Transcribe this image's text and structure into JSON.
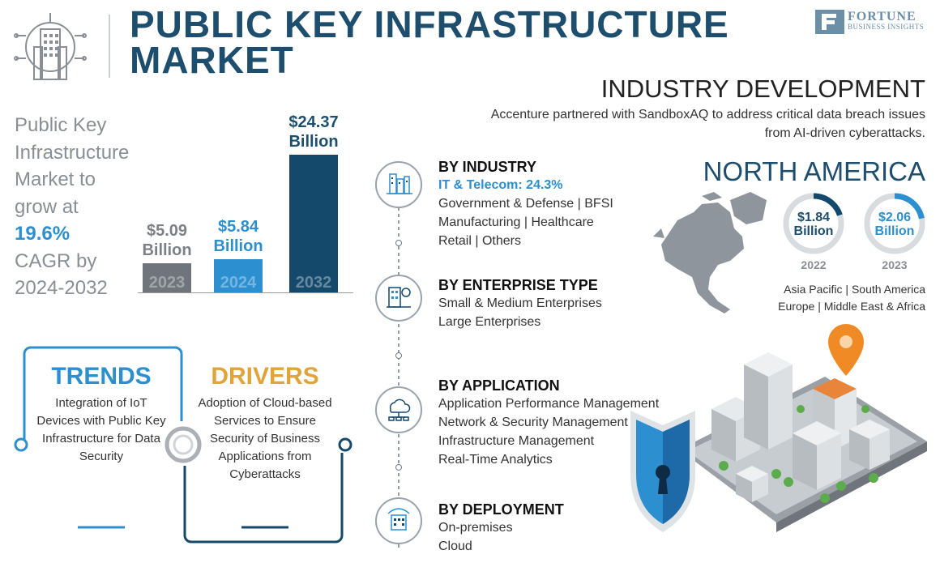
{
  "header": {
    "title_line1": "PUBLIC KEY INFRASTRUCTURE",
    "title_line2": "MARKET",
    "logo_line1": "FORTUNE",
    "logo_line2": "BUSINESS INSIGHTS"
  },
  "industry_development": {
    "heading": "INDUSTRY DEVELOPMENT",
    "text": "Accenture partnered with SandboxAQ to address critical data breach issues from AI-driven cyberattacks."
  },
  "growth": {
    "line1": "Public Key",
    "line2": "Infrastructure",
    "line3": "Market to",
    "line4": "grow at",
    "cagr": "19.6%",
    "line6": "CAGR by",
    "line7": "2024-2032"
  },
  "chart_data": {
    "type": "bar",
    "title": "",
    "categories": [
      "2023",
      "2024",
      "2032"
    ],
    "values": [
      5.09,
      5.84,
      24.37
    ],
    "value_labels": [
      {
        "amount": "$5.09",
        "unit": "Billion"
      },
      {
        "amount": "$5.84",
        "unit": "Billion"
      },
      {
        "amount": "$24.37",
        "unit": "Billion"
      }
    ],
    "colors": [
      "#6f747d",
      "#2b8fd0",
      "#14496b"
    ],
    "label_colors": [
      "#7d8187",
      "#2b8fd0",
      "#1e4e6e"
    ],
    "xlabel": "",
    "ylabel": "",
    "ylim": [
      0,
      24.37
    ]
  },
  "segments": [
    {
      "title": "BY INDUSTRY",
      "highlight": "IT & Telecom: 24.3%",
      "lines": [
        "Government & Defense  |  BFSI",
        "Manufacturing  |  Healthcare",
        "Retail  |  Others"
      ]
    },
    {
      "title": "BY ENTERPRISE TYPE",
      "lines": [
        "Small & Medium Enterprises",
        "Large Enterprises"
      ]
    },
    {
      "title": "BY APPLICATION",
      "lines": [
        "Application Performance Management",
        "Network & Security Management",
        "Infrastructure Management",
        "Real-Time Analytics"
      ]
    },
    {
      "title": "BY DEPLOYMENT",
      "lines": [
        "On-premises",
        "Cloud"
      ]
    }
  ],
  "north_america": {
    "heading": "NORTH AMERICA",
    "donuts": [
      {
        "amount": "$1.84",
        "unit": "Billion",
        "year": "2022",
        "fraction": 0.2
      },
      {
        "amount": "$2.06",
        "unit": "Billion",
        "year": "2023",
        "fraction": 0.22
      }
    ],
    "regions_line1": "Asia Pacific  |  South America",
    "regions_line2": "Europe  |  Middle East & Africa"
  },
  "trends": {
    "heading": "TRENDS",
    "text": "Integration of IoT Devices with Public Key Infrastructure for Data Security"
  },
  "drivers": {
    "heading": "DRIVERS",
    "text": "Adoption of Cloud-based Services to Ensure Security of Business Applications from Cyberattacks"
  },
  "colors": {
    "navy": "#1e4e6e",
    "blue": "#2b8fd0",
    "gray": "#6f747d",
    "orange": "#e1a43a"
  }
}
